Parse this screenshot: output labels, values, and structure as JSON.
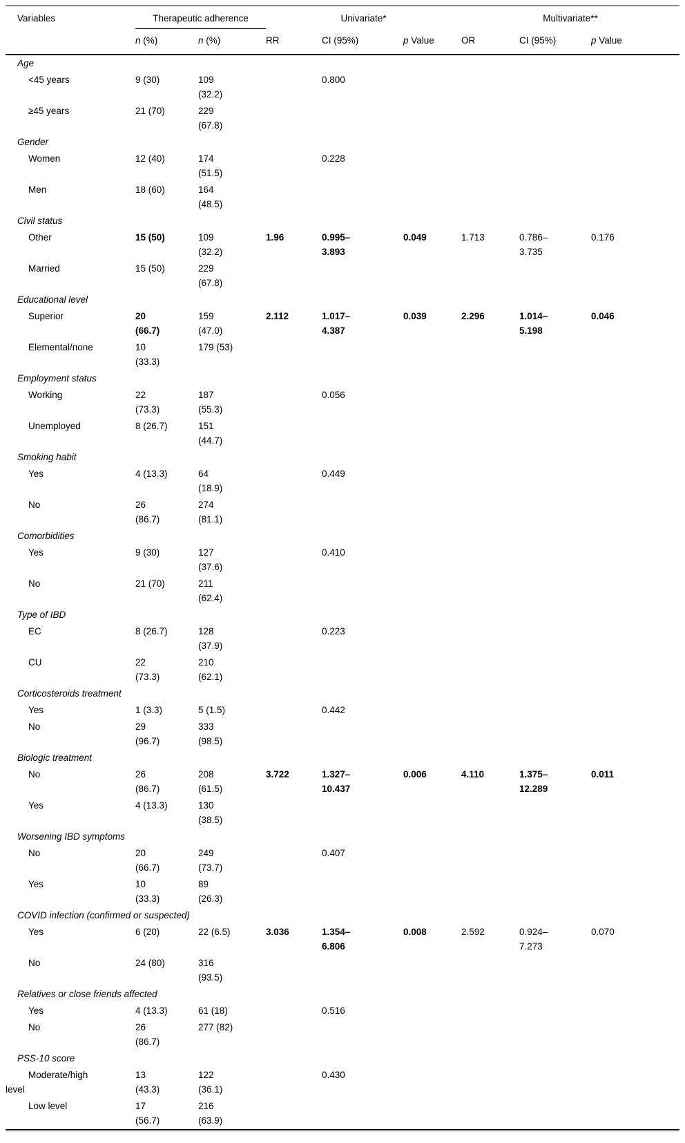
{
  "header": {
    "variables": "Variables",
    "groups": [
      {
        "label": "Therapeutic adherence",
        "span": 2,
        "underline": true
      },
      {
        "label": "Univariate*",
        "span": 3,
        "underline": false
      },
      {
        "label": "Multivariate**",
        "span": 3,
        "underline": false
      }
    ],
    "columns": [
      "n (%)",
      "n (%)",
      "RR",
      "CI (95%)",
      "p Value",
      "OR",
      "CI (95%)",
      "p Value"
    ]
  },
  "sections": [
    {
      "title": "Age",
      "rows": [
        {
          "label": "<45 years",
          "cells": [
            "9 (30)",
            "109 (32.2)",
            "",
            "0.800",
            "",
            "",
            "",
            ""
          ]
        },
        {
          "label": "≥45 years",
          "cells": [
            "21 (70)",
            "229 (67.8)",
            "",
            "",
            "",
            "",
            "",
            ""
          ]
        }
      ]
    },
    {
      "title": "Gender",
      "rows": [
        {
          "label": "Women",
          "cells": [
            "12 (40)",
            "174 (51.5)",
            "",
            "0.228",
            "",
            "",
            "",
            ""
          ]
        },
        {
          "label": "Men",
          "cells": [
            "18 (60)",
            "164 (48.5)",
            "",
            "",
            "",
            "",
            "",
            ""
          ]
        }
      ]
    },
    {
      "title": "Civil status",
      "rows": [
        {
          "label": "Other",
          "cells": [
            "15 (50)",
            "109 (32.2)",
            "1.96",
            "0.995–3.893",
            "0.049",
            "1.713",
            "0.786–3.735",
            "0.176"
          ],
          "bold": [
            0,
            2,
            3,
            4
          ]
        },
        {
          "label": "Married",
          "cells": [
            "15 (50)",
            "229 (67.8)",
            "",
            "",
            "",
            "",
            "",
            ""
          ]
        }
      ]
    },
    {
      "title": "Educational level",
      "rows": [
        {
          "label": "Superior",
          "cells": [
            "20 (66.7)",
            "159 (47.0)",
            "2.112",
            "1.017–4.387",
            "0.039",
            "2.296",
            "1.014–5.198",
            "0.046"
          ],
          "bold": [
            0,
            2,
            3,
            4,
            5,
            6,
            7
          ]
        },
        {
          "label": "Elemental/none",
          "cells": [
            "10 (33.3)",
            "179 (53)",
            "",
            "",
            "",
            "",
            "",
            ""
          ]
        }
      ]
    },
    {
      "title": "Employment status",
      "rows": [
        {
          "label": "Working",
          "cells": [
            "22 (73.3)",
            "187 (55.3)",
            "",
            "0.056",
            "",
            "",
            "",
            ""
          ]
        },
        {
          "label": "Unemployed",
          "cells": [
            "8 (26.7)",
            "151 (44.7)",
            "",
            "",
            "",
            "",
            "",
            ""
          ]
        }
      ]
    },
    {
      "title": "Smoking habit",
      "rows": [
        {
          "label": "Yes",
          "cells": [
            "4 (13.3)",
            "64 (18.9)",
            "",
            "0.449",
            "",
            "",
            "",
            ""
          ]
        },
        {
          "label": "No",
          "cells": [
            "26 (86.7)",
            "274 (81.1)",
            "",
            "",
            "",
            "",
            "",
            ""
          ]
        }
      ]
    },
    {
      "title": "Comorbidities",
      "rows": [
        {
          "label": "Yes",
          "cells": [
            "9 (30)",
            "127 (37.6)",
            "",
            "0.410",
            "",
            "",
            "",
            ""
          ]
        },
        {
          "label": "No",
          "cells": [
            "21 (70)",
            "211 (62.4)",
            "",
            "",
            "",
            "",
            "",
            ""
          ]
        }
      ]
    },
    {
      "title": "Type of IBD",
      "rows": [
        {
          "label": "EC",
          "cells": [
            "8 (26.7)",
            "128 (37.9)",
            "",
            "0.223",
            "",
            "",
            "",
            ""
          ]
        },
        {
          "label": "CU",
          "cells": [
            "22 (73.3)",
            "210 (62.1)",
            "",
            "",
            "",
            "",
            "",
            ""
          ]
        }
      ]
    },
    {
      "title": "Corticosteroids treatment",
      "rows": [
        {
          "label": "Yes",
          "cells": [
            "1 (3.3)",
            "5 (1.5)",
            "",
            "0.442",
            "",
            "",
            "",
            ""
          ]
        },
        {
          "label": "No",
          "cells": [
            "29 (96.7)",
            "333 (98.5)",
            "",
            "",
            "",
            "",
            "",
            ""
          ]
        }
      ]
    },
    {
      "title": "Biologic treatment",
      "rows": [
        {
          "label": "No",
          "cells": [
            "26 (86.7)",
            "208 (61.5)",
            "3.722",
            "1.327–10.437",
            "0.006",
            "4.110",
            "1.375–12.289",
            "0.011"
          ],
          "bold": [
            2,
            3,
            4,
            5,
            6,
            7
          ]
        },
        {
          "label": "Yes",
          "cells": [
            "4 (13.3)",
            "130 (38.5)",
            "",
            "",
            "",
            "",
            "",
            ""
          ]
        }
      ]
    },
    {
      "title": "Worsening IBD symptoms",
      "rows": [
        {
          "label": "No",
          "cells": [
            "20 (66.7)",
            "249 (73.7)",
            "",
            "0.407",
            "",
            "",
            "",
            ""
          ]
        },
        {
          "label": "Yes",
          "cells": [
            "10 (33.3)",
            "89 (26.3)",
            "",
            "",
            "",
            "",
            "",
            ""
          ]
        }
      ]
    },
    {
      "title": "COVID infection (confirmed or suspected)",
      "rows": [
        {
          "label": "Yes",
          "cells": [
            "6 (20)",
            "22 (6.5)",
            "3.036",
            "1.354–6.806",
            "0.008",
            "2.592",
            "0.924–7.273",
            "0.070"
          ],
          "bold": [
            2,
            3,
            4
          ]
        },
        {
          "label": "No",
          "cells": [
            "24 (80)",
            "316 (93.5)",
            "",
            "",
            "",
            "",
            "",
            ""
          ]
        }
      ]
    },
    {
      "title": "Relatives or close friends affected",
      "rows": [
        {
          "label": "Yes",
          "cells": [
            "4 (13.3)",
            "61 (18)",
            "",
            "0.516",
            "",
            "",
            "",
            ""
          ]
        },
        {
          "label": "No",
          "cells": [
            "26 (86.7)",
            "277 (82)",
            "",
            "",
            "",
            "",
            "",
            ""
          ]
        }
      ]
    },
    {
      "title": "PSS-10 score",
      "rows": [
        {
          "label": "Moderate/high level",
          "cells": [
            "13 (43.3)",
            "122 (36.1)",
            "",
            "0.430",
            "",
            "",
            "",
            ""
          ]
        },
        {
          "label": "Low level",
          "cells": [
            "17 (56.7)",
            "216 (63.9)",
            "",
            "",
            "",
            "",
            "",
            ""
          ]
        }
      ]
    }
  ]
}
